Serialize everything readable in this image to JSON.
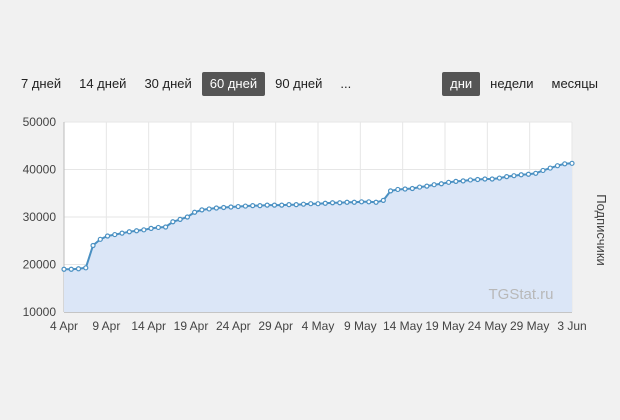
{
  "range_buttons": [
    {
      "label": "7 дней",
      "active": false
    },
    {
      "label": "14 дней",
      "active": false
    },
    {
      "label": "30 дней",
      "active": false
    },
    {
      "label": "60 дней",
      "active": true
    },
    {
      "label": "90 дней",
      "active": false
    },
    {
      "label": "...",
      "active": false
    }
  ],
  "group_buttons": [
    {
      "label": "дни",
      "active": true
    },
    {
      "label": "недели",
      "active": false
    },
    {
      "label": "месяцы",
      "active": false
    }
  ],
  "colors": {
    "line": "#4a90c2",
    "fill": "#dbe6f7",
    "grid": "#e6e6e6",
    "active_bg": "#555555"
  },
  "chart_data": {
    "type": "area",
    "ylabel": "Подписчики",
    "watermark": "TGStat.ru",
    "ylim": [
      10000,
      50000
    ],
    "y_ticks": [
      "10000",
      "20000",
      "30000",
      "40000",
      "50000"
    ],
    "x_tick_labels": [
      "4 Apr",
      "9 Apr",
      "14 Apr",
      "19 Apr",
      "24 Apr",
      "29 Apr",
      "4 May",
      "9 May",
      "14 May",
      "19 May",
      "24 May",
      "29 May",
      "3 Jun"
    ],
    "grid": true,
    "legend": "none",
    "series": [
      {
        "x_start": "4 Apr",
        "values": [
          19000,
          19000,
          19100,
          19300,
          24000,
          25300,
          26000,
          26300,
          26600,
          26900,
          27100,
          27300,
          27600,
          27800,
          27900,
          29000,
          29500,
          30000,
          31000,
          31500,
          31700,
          31900,
          32000,
          32100,
          32200,
          32300,
          32400,
          32400,
          32500,
          32500,
          32500,
          32600,
          32600,
          32700,
          32800,
          32800,
          32900,
          33000,
          33000,
          33100,
          33100,
          33200,
          33200,
          33100,
          33500,
          35500,
          35800,
          35900,
          36000,
          36300,
          36500,
          36800,
          37000,
          37300,
          37500,
          37600,
          37800,
          37900,
          38000,
          38000,
          38200,
          38500,
          38700,
          38900,
          39000,
          39200,
          39800,
          40300,
          40800,
          41200,
          41300
        ]
      }
    ]
  }
}
